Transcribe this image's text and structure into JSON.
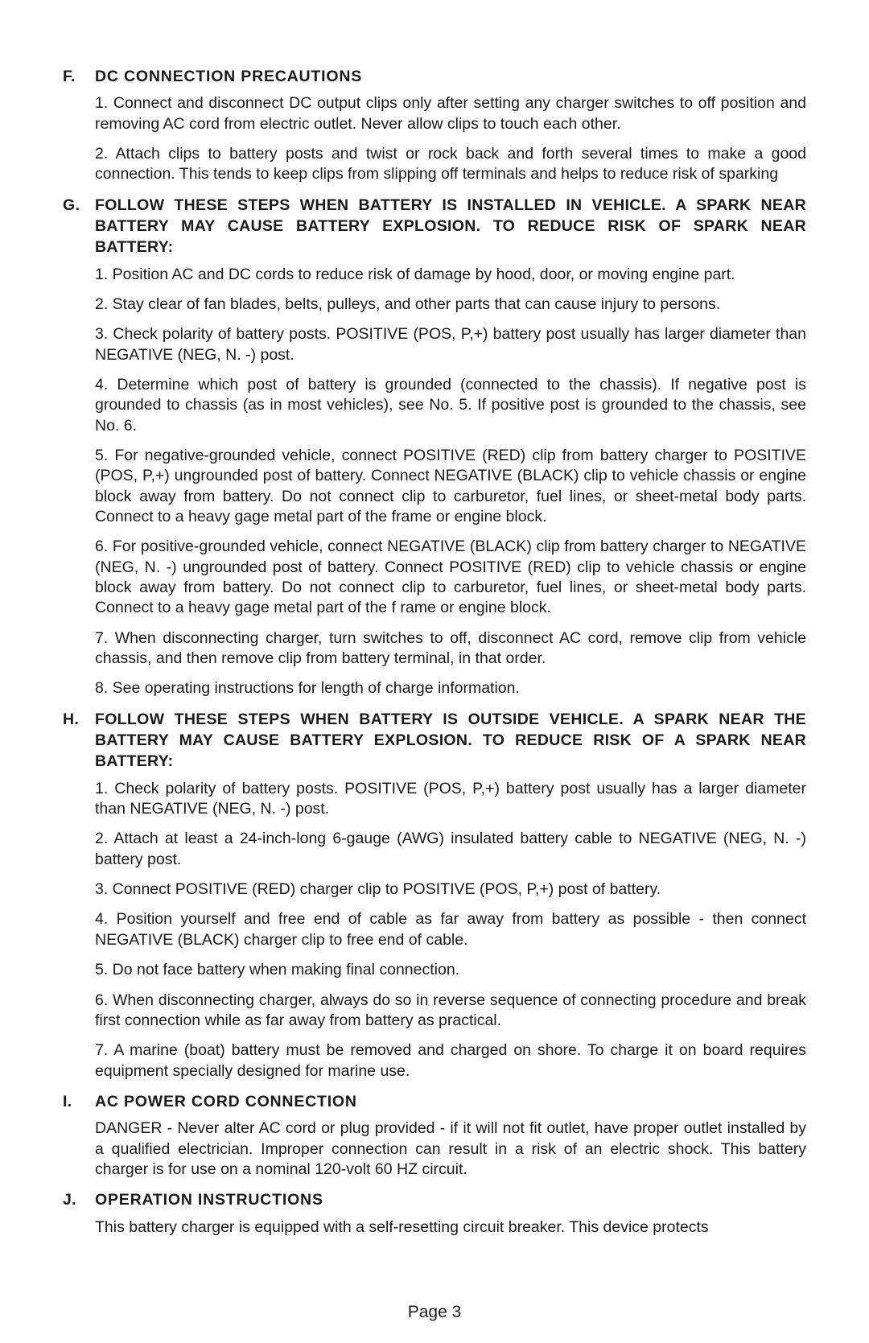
{
  "sections": {
    "F": {
      "letter": "F.",
      "title": "DC CONNECTION PRECAUTIONS",
      "paras": [
        "1. Connect and disconnect DC output clips only after setting any charger switches to off position and removing AC cord from electric outlet. Never allow clips to touch each other.",
        "2. Attach clips to battery posts and twist or rock back and forth several times to make a good connection. This tends to keep clips from slipping off terminals and helps to reduce risk of sparking"
      ]
    },
    "G": {
      "letter": "G.",
      "title": "FOLLOW THESE STEPS WHEN BATTERY IS INSTALLED IN VEHICLE. A SPARK NEAR BATTERY MAY CAUSE BATTERY EXPLOSION. TO REDUCE RISK OF SPARK NEAR BATTERY:",
      "paras": [
        "1. Position AC and DC cords to reduce risk of damage by hood, door, or moving engine part.",
        "2. Stay clear of fan blades, belts, pulleys, and other parts that can cause injury to persons.",
        "3. Check polarity of battery posts. POSITIVE (POS, P,+) battery post usually has larger diameter than NEGATIVE (NEG, N. -) post.",
        "4. Determine which post of battery is grounded (connected to the chassis). If negative post is grounded to chassis (as in most vehicles), see No. 5. If positive post is grounded to the chassis, see No. 6.",
        "5. For negative-grounded vehicle, connect POSITIVE (RED) clip from battery charger to POSITIVE (POS, P,+) ungrounded post of battery. Connect NEGATIVE (BLACK) clip to vehicle chassis or engine block away from battery. Do not connect clip to carburetor, fuel lines, or sheet-metal body parts. Connect to a heavy gage metal part of the frame or engine block.",
        "6. For positive-grounded vehicle, connect NEGATIVE (BLACK) clip from battery charger to NEGATIVE (NEG, N. -) ungrounded post of battery. Connect POSITIVE (RED) clip to vehicle chassis or engine block away from battery. Do not connect clip to carburetor, fuel lines, or sheet-metal body parts. Connect to a heavy gage metal part of the f rame or engine block.",
        "7. When disconnecting charger, turn switches to off, disconnect AC cord, remove clip from vehicle chassis, and then remove clip from battery terminal, in that order.",
        "8. See operating instructions for length of charge information."
      ]
    },
    "H": {
      "letter": "H.",
      "title": "FOLLOW THESE STEPS WHEN BATTERY IS OUTSIDE VEHICLE. A SPARK NEAR THE BATTERY MAY CAUSE BATTERY EXPLOSION. TO REDUCE RISK OF A SPARK NEAR BATTERY:",
      "paras": [
        "1. Check polarity of battery posts. POSITIVE (POS, P,+) battery post usually has a larger diameter than NEGATIVE (NEG, N. -) post.",
        "2. Attach at least a 24-inch-long 6-gauge (AWG) insulated battery cable to NEGATIVE (NEG, N. -) battery post.",
        "3. Connect POSITIVE (RED) charger clip to POSITIVE (POS, P,+) post of battery.",
        "4. Position yourself and free end of cable as far away from battery as possible - then connect NEGATIVE (BLACK) charger clip to free end of cable.",
        "5. Do not face battery when making final connection.",
        "6. When disconnecting charger, always do so in reverse sequence of connecting procedure and break first connection while as far away from battery as practical.",
        "7. A marine (boat) battery must be removed and charged on shore. To charge it on board requires equipment specially designed for marine use."
      ]
    },
    "I": {
      "letter": "I.",
      "title": "AC POWER CORD CONNECTION",
      "paras": [
        "DANGER - Never alter AC cord or plug provided - if it will not fit outlet, have proper outlet installed by a qualified electrician. Improper connection can result in a risk of an electric shock. This battery charger is for use on a nominal 120-volt 60 HZ circuit."
      ]
    },
    "J": {
      "letter": "J.",
      "title": "OPERATION INSTRUCTIONS",
      "paras": [
        "This battery charger is equipped with a self-resetting circuit breaker. This device protects"
      ]
    }
  },
  "footer": "Page 3"
}
